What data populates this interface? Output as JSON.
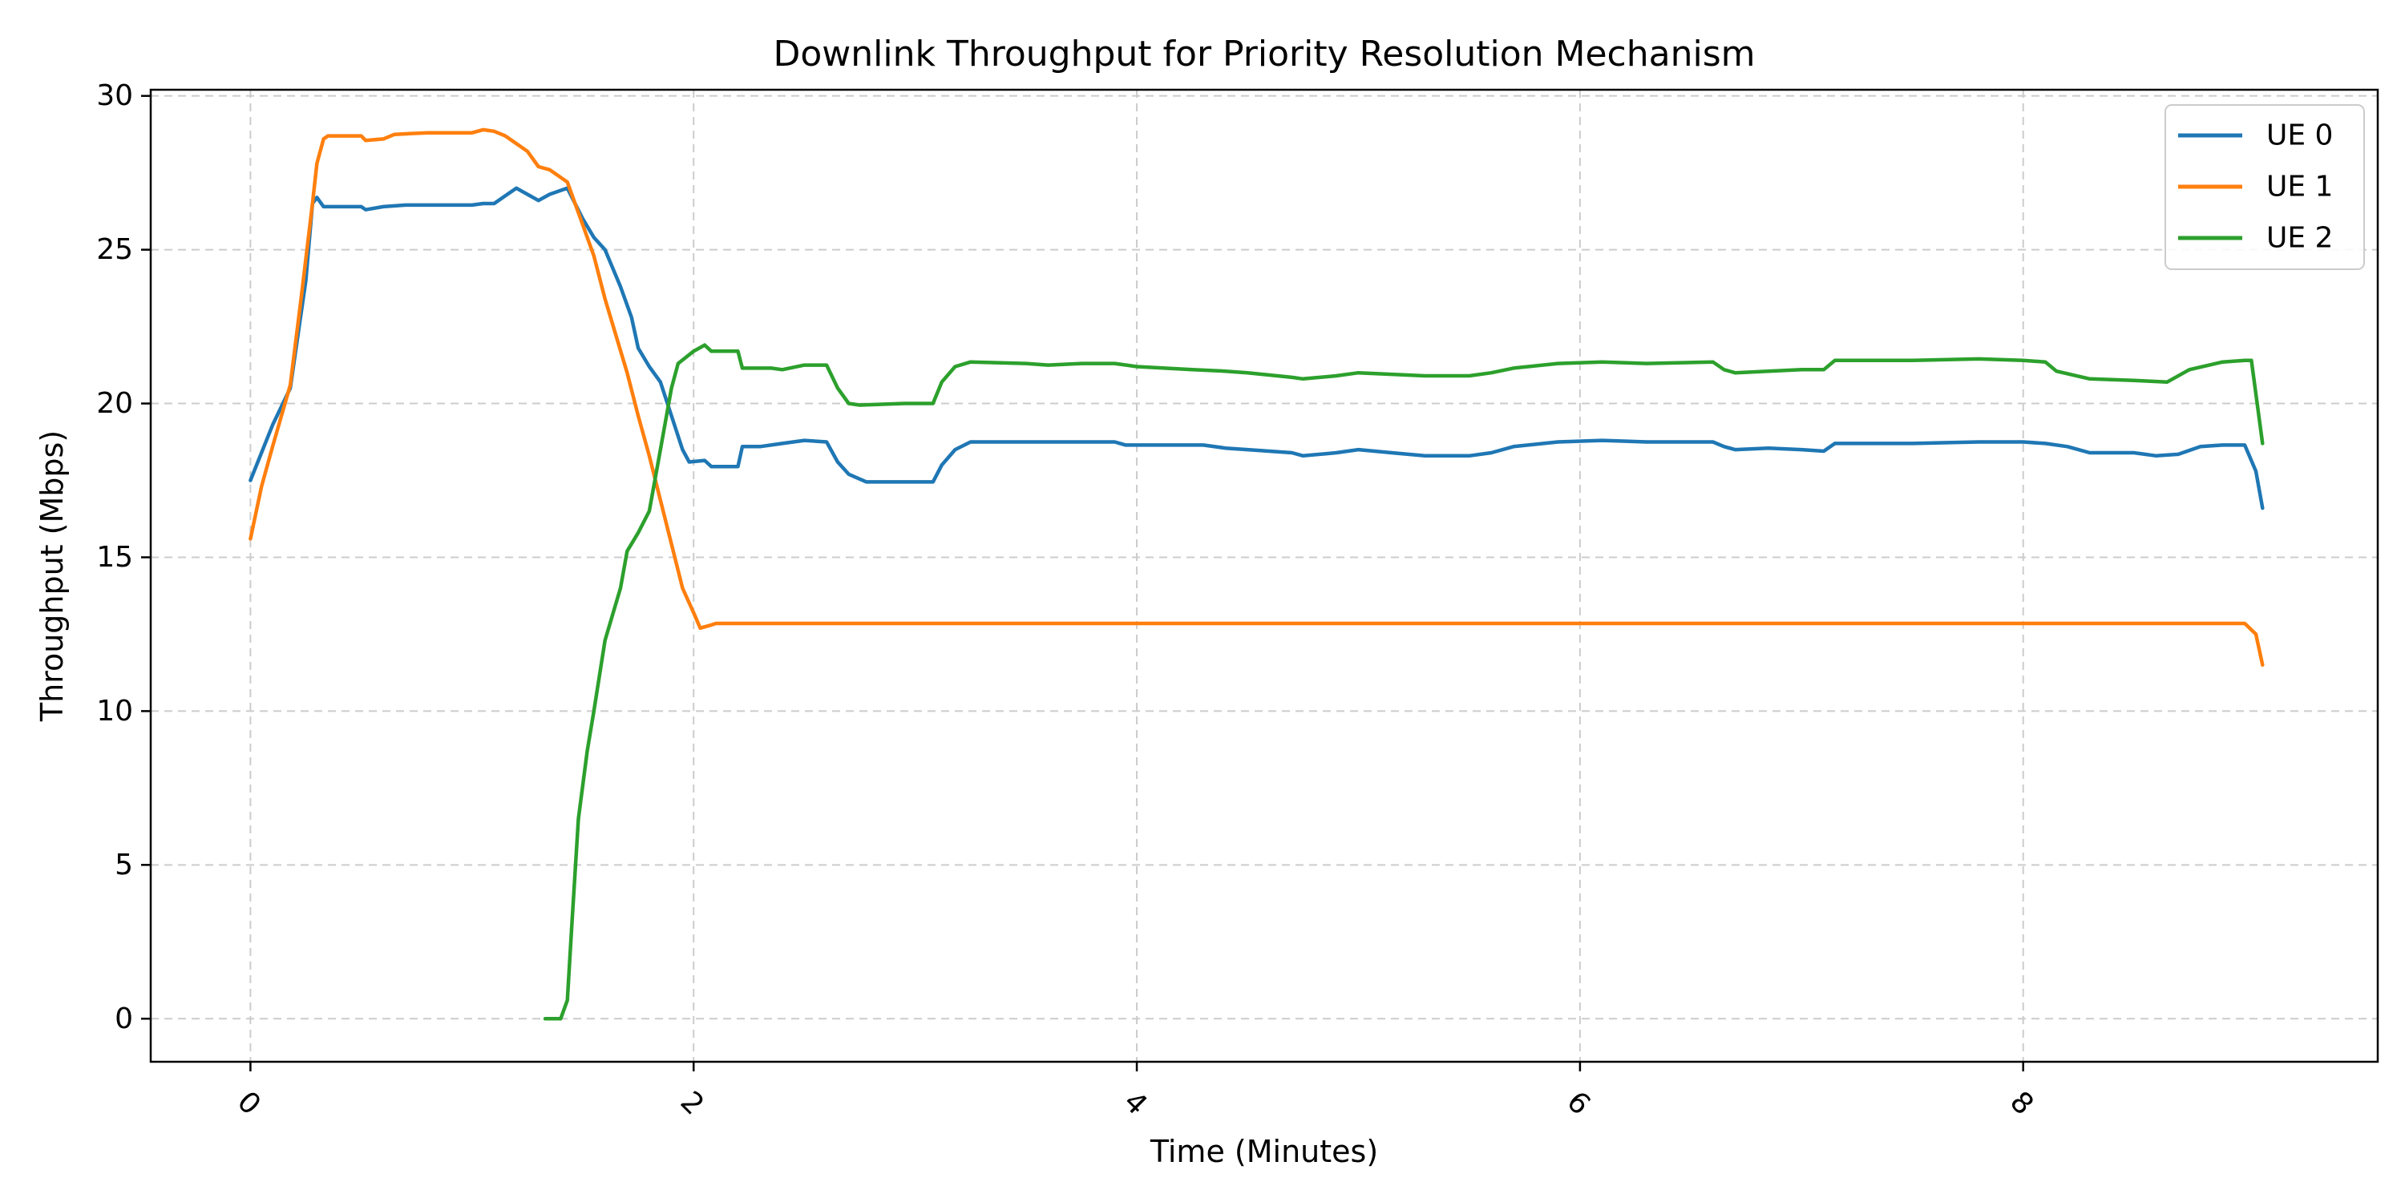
{
  "chart_data": {
    "type": "line",
    "title": "Downlink Throughput for Priority Resolution Mechanism",
    "xlabel": "Time (Minutes)",
    "ylabel": "Throughput (Mbps)",
    "xlim": [
      -0.45,
      9.6
    ],
    "ylim": [
      -1.4,
      30.2
    ],
    "xticks": [
      0,
      2,
      4,
      6,
      8
    ],
    "xtick_labels": [
      "0",
      "2",
      "4",
      "6",
      "8"
    ],
    "xtick_rotation": 45,
    "yticks": [
      0,
      5,
      10,
      15,
      20,
      25,
      30
    ],
    "ytick_labels": [
      "0",
      "5",
      "10",
      "15",
      "20",
      "25",
      "30"
    ],
    "grid": true,
    "legend_position": "top-right",
    "series": [
      {
        "name": "UE 0",
        "color": "#1f77b4",
        "points": [
          [
            0,
            17.5
          ],
          [
            0.1,
            19.3
          ],
          [
            0.18,
            20.5
          ],
          [
            0.25,
            24
          ],
          [
            0.28,
            26.5
          ],
          [
            0.3,
            26.7
          ],
          [
            0.33,
            26.4
          ],
          [
            0.5,
            26.4
          ],
          [
            0.52,
            26.3
          ],
          [
            0.6,
            26.4
          ],
          [
            0.7,
            26.45
          ],
          [
            1.0,
            26.45
          ],
          [
            1.05,
            26.5
          ],
          [
            1.1,
            26.5
          ],
          [
            1.2,
            27.0
          ],
          [
            1.25,
            26.8
          ],
          [
            1.3,
            26.6
          ],
          [
            1.35,
            26.8
          ],
          [
            1.43,
            27.0
          ],
          [
            1.5,
            26.0
          ],
          [
            1.55,
            25.4
          ],
          [
            1.6,
            25.0
          ],
          [
            1.67,
            23.8
          ],
          [
            1.72,
            22.8
          ],
          [
            1.75,
            21.8
          ],
          [
            1.8,
            21.2
          ],
          [
            1.85,
            20.7
          ],
          [
            1.9,
            19.6
          ],
          [
            1.95,
            18.5
          ],
          [
            1.98,
            18.1
          ],
          [
            2.05,
            18.15
          ],
          [
            2.08,
            17.95
          ],
          [
            2.2,
            17.95
          ],
          [
            2.22,
            18.6
          ],
          [
            2.3,
            18.6
          ],
          [
            2.4,
            18.7
          ],
          [
            2.5,
            18.8
          ],
          [
            2.6,
            18.75
          ],
          [
            2.65,
            18.1
          ],
          [
            2.7,
            17.7
          ],
          [
            2.78,
            17.45
          ],
          [
            2.9,
            17.45
          ],
          [
            3.05,
            17.45
          ],
          [
            3.08,
            17.45
          ],
          [
            3.12,
            18.0
          ],
          [
            3.18,
            18.5
          ],
          [
            3.25,
            18.75
          ],
          [
            3.5,
            18.75
          ],
          [
            3.75,
            18.75
          ],
          [
            3.9,
            18.75
          ],
          [
            3.95,
            18.65
          ],
          [
            4.1,
            18.65
          ],
          [
            4.3,
            18.65
          ],
          [
            4.4,
            18.55
          ],
          [
            4.5,
            18.5
          ],
          [
            4.7,
            18.4
          ],
          [
            4.75,
            18.3
          ],
          [
            4.9,
            18.4
          ],
          [
            5.0,
            18.5
          ],
          [
            5.15,
            18.4
          ],
          [
            5.3,
            18.3
          ],
          [
            5.5,
            18.3
          ],
          [
            5.6,
            18.4
          ],
          [
            5.7,
            18.6
          ],
          [
            5.9,
            18.75
          ],
          [
            6.1,
            18.8
          ],
          [
            6.3,
            18.75
          ],
          [
            6.6,
            18.75
          ],
          [
            6.65,
            18.6
          ],
          [
            6.7,
            18.5
          ],
          [
            6.85,
            18.55
          ],
          [
            7.0,
            18.5
          ],
          [
            7.1,
            18.45
          ],
          [
            7.15,
            18.7
          ],
          [
            7.5,
            18.7
          ],
          [
            7.8,
            18.75
          ],
          [
            8.0,
            18.75
          ],
          [
            8.1,
            18.7
          ],
          [
            8.2,
            18.6
          ],
          [
            8.3,
            18.4
          ],
          [
            8.5,
            18.4
          ],
          [
            8.6,
            18.3
          ],
          [
            8.7,
            18.35
          ],
          [
            8.8,
            18.6
          ],
          [
            8.9,
            18.65
          ],
          [
            9.0,
            18.65
          ],
          [
            9.05,
            17.8
          ],
          [
            9.08,
            16.6
          ]
        ]
      },
      {
        "name": "UE 1",
        "color": "#ff7f0e",
        "points": [
          [
            0,
            15.6
          ],
          [
            0.05,
            17.3
          ],
          [
            0.1,
            18.6
          ],
          [
            0.18,
            20.6
          ],
          [
            0.23,
            23.5
          ],
          [
            0.28,
            26.5
          ],
          [
            0.3,
            27.8
          ],
          [
            0.33,
            28.6
          ],
          [
            0.35,
            28.7
          ],
          [
            0.5,
            28.7
          ],
          [
            0.52,
            28.55
          ],
          [
            0.6,
            28.6
          ],
          [
            0.65,
            28.75
          ],
          [
            0.8,
            28.8
          ],
          [
            1.0,
            28.8
          ],
          [
            1.05,
            28.9
          ],
          [
            1.1,
            28.85
          ],
          [
            1.15,
            28.7
          ],
          [
            1.25,
            28.2
          ],
          [
            1.3,
            27.7
          ],
          [
            1.35,
            27.6
          ],
          [
            1.43,
            27.2
          ],
          [
            1.48,
            26.2
          ],
          [
            1.55,
            24.8
          ],
          [
            1.6,
            23.4
          ],
          [
            1.7,
            21.0
          ],
          [
            1.75,
            19.6
          ],
          [
            1.8,
            18.3
          ],
          [
            1.88,
            16.0
          ],
          [
            1.95,
            14.0
          ],
          [
            2.0,
            13.2
          ],
          [
            2.03,
            12.7
          ],
          [
            2.08,
            12.8
          ],
          [
            2.1,
            12.85
          ],
          [
            2.6,
            12.85
          ],
          [
            3.1,
            12.85
          ],
          [
            4.0,
            12.85
          ],
          [
            5.0,
            12.85
          ],
          [
            6.0,
            12.85
          ],
          [
            7.0,
            12.85
          ],
          [
            8.0,
            12.85
          ],
          [
            9.0,
            12.85
          ],
          [
            9.05,
            12.5
          ],
          [
            9.08,
            11.5
          ]
        ]
      },
      {
        "name": "UE 2",
        "color": "#2ca02c",
        "points": [
          [
            1.33,
            0.0
          ],
          [
            1.4,
            0.0
          ],
          [
            1.43,
            0.6
          ],
          [
            1.45,
            3.0
          ],
          [
            1.48,
            6.5
          ],
          [
            1.52,
            8.7
          ],
          [
            1.55,
            10.0
          ],
          [
            1.6,
            12.3
          ],
          [
            1.67,
            14.0
          ],
          [
            1.7,
            15.2
          ],
          [
            1.75,
            15.8
          ],
          [
            1.8,
            16.5
          ],
          [
            1.85,
            18.5
          ],
          [
            1.9,
            20.5
          ],
          [
            1.93,
            21.3
          ],
          [
            2.0,
            21.7
          ],
          [
            2.05,
            21.9
          ],
          [
            2.08,
            21.7
          ],
          [
            2.1,
            21.7
          ],
          [
            2.2,
            21.7
          ],
          [
            2.22,
            21.15
          ],
          [
            2.35,
            21.15
          ],
          [
            2.4,
            21.1
          ],
          [
            2.5,
            21.25
          ],
          [
            2.6,
            21.25
          ],
          [
            2.65,
            20.5
          ],
          [
            2.7,
            20.0
          ],
          [
            2.75,
            19.95
          ],
          [
            2.95,
            20.0
          ],
          [
            3.08,
            20.0
          ],
          [
            3.12,
            20.7
          ],
          [
            3.18,
            21.2
          ],
          [
            3.25,
            21.35
          ],
          [
            3.5,
            21.3
          ],
          [
            3.6,
            21.25
          ],
          [
            3.75,
            21.3
          ],
          [
            3.9,
            21.3
          ],
          [
            4.0,
            21.2
          ],
          [
            4.25,
            21.1
          ],
          [
            4.4,
            21.05
          ],
          [
            4.5,
            21.0
          ],
          [
            4.7,
            20.85
          ],
          [
            4.75,
            20.8
          ],
          [
            4.9,
            20.9
          ],
          [
            5.0,
            21.0
          ],
          [
            5.15,
            20.95
          ],
          [
            5.3,
            20.9
          ],
          [
            5.5,
            20.9
          ],
          [
            5.6,
            21.0
          ],
          [
            5.7,
            21.15
          ],
          [
            5.9,
            21.3
          ],
          [
            6.1,
            21.35
          ],
          [
            6.3,
            21.3
          ],
          [
            6.6,
            21.35
          ],
          [
            6.65,
            21.1
          ],
          [
            6.7,
            21.0
          ],
          [
            6.85,
            21.05
          ],
          [
            7.0,
            21.1
          ],
          [
            7.1,
            21.1
          ],
          [
            7.15,
            21.4
          ],
          [
            7.5,
            21.4
          ],
          [
            7.8,
            21.45
          ],
          [
            8.0,
            21.4
          ],
          [
            8.1,
            21.35
          ],
          [
            8.15,
            21.05
          ],
          [
            8.3,
            20.8
          ],
          [
            8.5,
            20.75
          ],
          [
            8.65,
            20.7
          ],
          [
            8.75,
            21.1
          ],
          [
            8.9,
            21.35
          ],
          [
            9.0,
            21.4
          ],
          [
            9.03,
            21.4
          ],
          [
            9.08,
            18.7
          ]
        ]
      }
    ]
  }
}
